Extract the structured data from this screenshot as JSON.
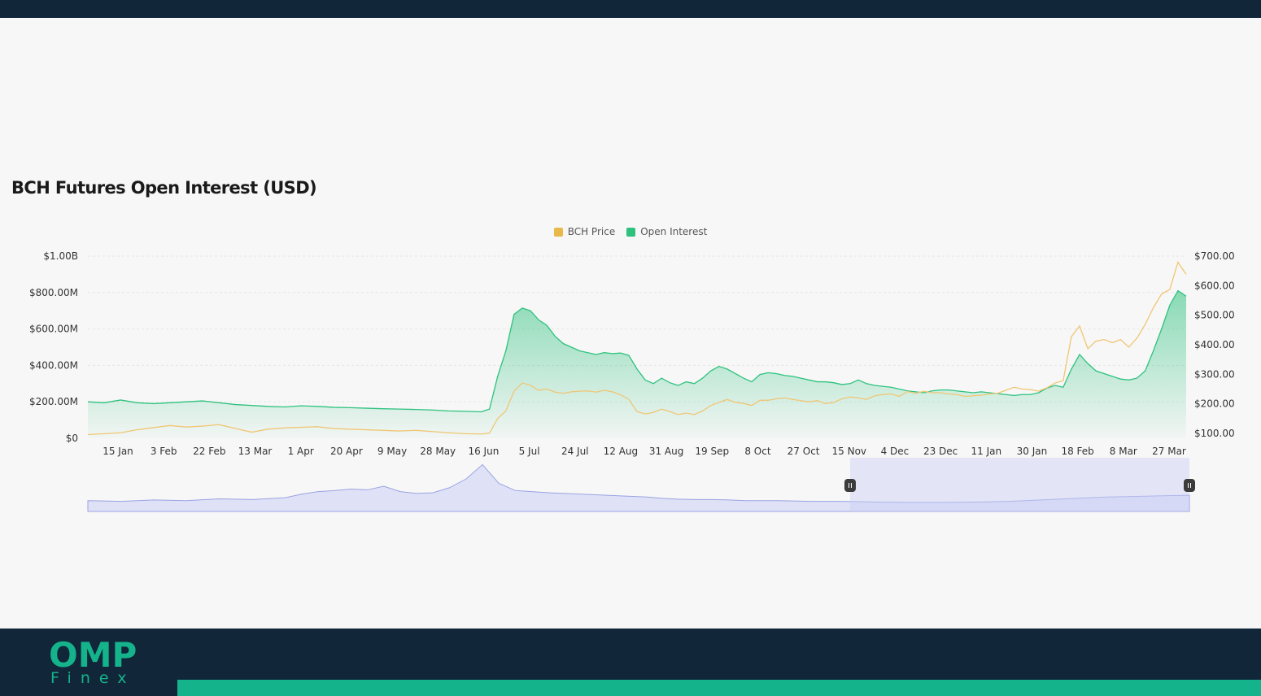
{
  "chart_data": {
    "type": "area",
    "title": "BCH Futures Open Interest (USD)",
    "x_tick_labels": [
      "15 Jan",
      "3 Feb",
      "22 Feb",
      "13 Mar",
      "1 Apr",
      "20 Apr",
      "9 May",
      "28 May",
      "16 Jun",
      "5 Jul",
      "24 Jul",
      "12 Aug",
      "31 Aug",
      "19 Sep",
      "8 Oct",
      "27 Oct",
      "15 Nov",
      "4 Dec",
      "23 Dec",
      "11 Jan",
      "30 Jan",
      "18 Feb",
      "8 Mar",
      "27 Mar"
    ],
    "y_left": {
      "ticks": [
        "$0",
        "$200.00M",
        "$400.00M",
        "$600.00M",
        "$800.00M",
        "$1.00B"
      ],
      "lim": [
        0,
        1000
      ]
    },
    "y_right": {
      "ticks": [
        "$100.00",
        "$200.00",
        "$300.00",
        "$400.00",
        "$500.00",
        "$600.00",
        "$700.00"
      ],
      "lim": [
        100,
        700
      ]
    },
    "grid": true,
    "legend_position": "top-center",
    "series": [
      {
        "name": "BCH Price",
        "axis": "right",
        "color": "#f0c674",
        "points": [
          [
            0,
            112
          ],
          [
            4,
            118
          ],
          [
            6,
            128
          ],
          [
            8,
            135
          ],
          [
            10,
            142
          ],
          [
            12,
            137
          ],
          [
            14,
            140
          ],
          [
            16,
            145
          ],
          [
            18,
            132
          ],
          [
            20,
            120
          ],
          [
            22,
            130
          ],
          [
            24,
            134
          ],
          [
            26,
            136
          ],
          [
            28,
            138
          ],
          [
            30,
            132
          ],
          [
            32,
            130
          ],
          [
            34,
            128
          ],
          [
            36,
            126
          ],
          [
            38,
            124
          ],
          [
            40,
            126
          ],
          [
            42,
            122
          ],
          [
            44,
            118
          ],
          [
            46,
            115
          ],
          [
            48,
            114
          ],
          [
            49,
            117
          ],
          [
            50,
            165
          ],
          [
            51,
            190
          ],
          [
            52,
            255
          ],
          [
            53,
            282
          ],
          [
            54,
            275
          ],
          [
            55,
            258
          ],
          [
            56,
            262
          ],
          [
            57,
            252
          ],
          [
            58,
            248
          ],
          [
            59,
            253
          ],
          [
            60,
            255
          ],
          [
            61,
            256
          ],
          [
            62,
            252
          ],
          [
            63,
            258
          ],
          [
            64,
            253
          ],
          [
            65,
            243
          ],
          [
            66,
            228
          ],
          [
            67,
            188
          ],
          [
            68,
            180
          ],
          [
            69,
            185
          ],
          [
            70,
            196
          ],
          [
            71,
            188
          ],
          [
            72,
            178
          ],
          [
            73,
            183
          ],
          [
            74,
            178
          ],
          [
            75,
            190
          ],
          [
            76,
            208
          ],
          [
            77,
            218
          ],
          [
            78,
            228
          ],
          [
            79,
            218
          ],
          [
            80,
            215
          ],
          [
            81,
            208
          ],
          [
            82,
            225
          ],
          [
            83,
            225
          ],
          [
            84,
            230
          ],
          [
            85,
            233
          ],
          [
            86,
            228
          ],
          [
            87,
            224
          ],
          [
            88,
            220
          ],
          [
            89,
            224
          ],
          [
            90,
            214
          ],
          [
            91,
            218
          ],
          [
            92,
            230
          ],
          [
            93,
            236
          ],
          [
            94,
            233
          ],
          [
            95,
            228
          ],
          [
            96,
            240
          ],
          [
            97,
            244
          ],
          [
            98,
            246
          ],
          [
            99,
            238
          ],
          [
            100,
            254
          ],
          [
            101,
            248
          ],
          [
            102,
            255
          ],
          [
            103,
            250
          ],
          [
            104,
            250
          ],
          [
            105,
            246
          ],
          [
            106,
            244
          ],
          [
            107,
            238
          ],
          [
            108,
            240
          ],
          [
            109,
            242
          ],
          [
            110,
            246
          ],
          [
            111,
            248
          ],
          [
            112,
            258
          ],
          [
            113,
            268
          ],
          [
            114,
            262
          ],
          [
            115,
            260
          ],
          [
            116,
            255
          ],
          [
            117,
            266
          ],
          [
            118,
            282
          ],
          [
            119,
            290
          ],
          [
            120,
            435
          ],
          [
            121,
            470
          ],
          [
            122,
            395
          ],
          [
            123,
            420
          ],
          [
            124,
            425
          ],
          [
            125,
            415
          ],
          [
            126,
            425
          ],
          [
            127,
            400
          ],
          [
            128,
            430
          ],
          [
            129,
            475
          ],
          [
            130,
            530
          ],
          [
            131,
            575
          ],
          [
            132,
            590
          ],
          [
            133,
            680
          ],
          [
            134,
            640
          ]
        ]
      },
      {
        "name": "Open Interest",
        "axis": "left",
        "color": "#2ec27e",
        "points": [
          [
            0,
            200
          ],
          [
            2,
            195
          ],
          [
            4,
            210
          ],
          [
            6,
            195
          ],
          [
            8,
            190
          ],
          [
            10,
            195
          ],
          [
            12,
            200
          ],
          [
            14,
            205
          ],
          [
            16,
            195
          ],
          [
            18,
            185
          ],
          [
            20,
            180
          ],
          [
            22,
            175
          ],
          [
            24,
            172
          ],
          [
            26,
            178
          ],
          [
            28,
            175
          ],
          [
            30,
            170
          ],
          [
            32,
            168
          ],
          [
            34,
            165
          ],
          [
            36,
            162
          ],
          [
            38,
            160
          ],
          [
            40,
            158
          ],
          [
            42,
            155
          ],
          [
            44,
            150
          ],
          [
            46,
            148
          ],
          [
            48,
            145
          ],
          [
            49,
            160
          ],
          [
            50,
            340
          ],
          [
            51,
            480
          ],
          [
            52,
            680
          ],
          [
            53,
            715
          ],
          [
            54,
            700
          ],
          [
            55,
            650
          ],
          [
            56,
            620
          ],
          [
            57,
            560
          ],
          [
            58,
            520
          ],
          [
            59,
            500
          ],
          [
            60,
            480
          ],
          [
            61,
            470
          ],
          [
            62,
            460
          ],
          [
            63,
            470
          ],
          [
            64,
            465
          ],
          [
            65,
            468
          ],
          [
            66,
            455
          ],
          [
            67,
            380
          ],
          [
            68,
            320
          ],
          [
            69,
            300
          ],
          [
            70,
            330
          ],
          [
            71,
            305
          ],
          [
            72,
            290
          ],
          [
            73,
            310
          ],
          [
            74,
            300
          ],
          [
            75,
            330
          ],
          [
            76,
            370
          ],
          [
            77,
            395
          ],
          [
            78,
            380
          ],
          [
            79,
            355
          ],
          [
            80,
            330
          ],
          [
            81,
            310
          ],
          [
            82,
            350
          ],
          [
            83,
            360
          ],
          [
            84,
            355
          ],
          [
            85,
            345
          ],
          [
            86,
            340
          ],
          [
            87,
            330
          ],
          [
            88,
            320
          ],
          [
            89,
            310
          ],
          [
            90,
            310
          ],
          [
            91,
            305
          ],
          [
            92,
            295
          ],
          [
            93,
            300
          ],
          [
            94,
            320
          ],
          [
            95,
            300
          ],
          [
            96,
            290
          ],
          [
            97,
            285
          ],
          [
            98,
            280
          ],
          [
            99,
            270
          ],
          [
            100,
            260
          ],
          [
            101,
            255
          ],
          [
            102,
            250
          ],
          [
            103,
            260
          ],
          [
            104,
            265
          ],
          [
            105,
            265
          ],
          [
            106,
            260
          ],
          [
            107,
            255
          ],
          [
            108,
            250
          ],
          [
            109,
            255
          ],
          [
            110,
            250
          ],
          [
            111,
            245
          ],
          [
            112,
            240
          ],
          [
            113,
            235
          ],
          [
            114,
            240
          ],
          [
            115,
            240
          ],
          [
            116,
            250
          ],
          [
            117,
            275
          ],
          [
            118,
            290
          ],
          [
            119,
            280
          ],
          [
            120,
            380
          ],
          [
            121,
            460
          ],
          [
            122,
            410
          ],
          [
            123,
            370
          ],
          [
            124,
            355
          ],
          [
            125,
            340
          ],
          [
            126,
            325
          ],
          [
            127,
            320
          ],
          [
            128,
            330
          ],
          [
            129,
            370
          ],
          [
            130,
            480
          ],
          [
            131,
            600
          ],
          [
            132,
            730
          ],
          [
            133,
            810
          ],
          [
            134,
            780
          ]
        ]
      },
      {
        "name": "",
        "axis": "navigator",
        "color": "#9aa3e0",
        "points": [
          [
            0,
            30
          ],
          [
            4,
            28
          ],
          [
            8,
            32
          ],
          [
            12,
            30
          ],
          [
            16,
            35
          ],
          [
            20,
            33
          ],
          [
            24,
            38
          ],
          [
            26,
            48
          ],
          [
            28,
            55
          ],
          [
            30,
            58
          ],
          [
            32,
            62
          ],
          [
            34,
            60
          ],
          [
            36,
            70
          ],
          [
            38,
            55
          ],
          [
            40,
            50
          ],
          [
            42,
            52
          ],
          [
            44,
            66
          ],
          [
            46,
            90
          ],
          [
            48,
            130
          ],
          [
            50,
            78
          ],
          [
            52,
            58
          ],
          [
            54,
            55
          ],
          [
            56,
            52
          ],
          [
            58,
            50
          ],
          [
            60,
            48
          ],
          [
            62,
            46
          ],
          [
            64,
            44
          ],
          [
            66,
            42
          ],
          [
            68,
            40
          ],
          [
            70,
            36
          ],
          [
            72,
            34
          ],
          [
            74,
            33
          ],
          [
            76,
            33
          ],
          [
            78,
            32
          ],
          [
            80,
            30
          ],
          [
            84,
            30
          ],
          [
            88,
            28
          ],
          [
            92,
            28
          ],
          [
            96,
            26
          ],
          [
            100,
            25
          ],
          [
            104,
            25
          ],
          [
            108,
            26
          ],
          [
            112,
            28
          ],
          [
            116,
            32
          ],
          [
            120,
            36
          ],
          [
            124,
            40
          ],
          [
            128,
            42
          ],
          [
            132,
            44
          ],
          [
            134,
            45
          ]
        ]
      }
    ],
    "navigator_range": [
      0.692,
      1.0
    ]
  },
  "branding": {
    "logo_main": "OMP",
    "logo_sub": "Finex"
  }
}
